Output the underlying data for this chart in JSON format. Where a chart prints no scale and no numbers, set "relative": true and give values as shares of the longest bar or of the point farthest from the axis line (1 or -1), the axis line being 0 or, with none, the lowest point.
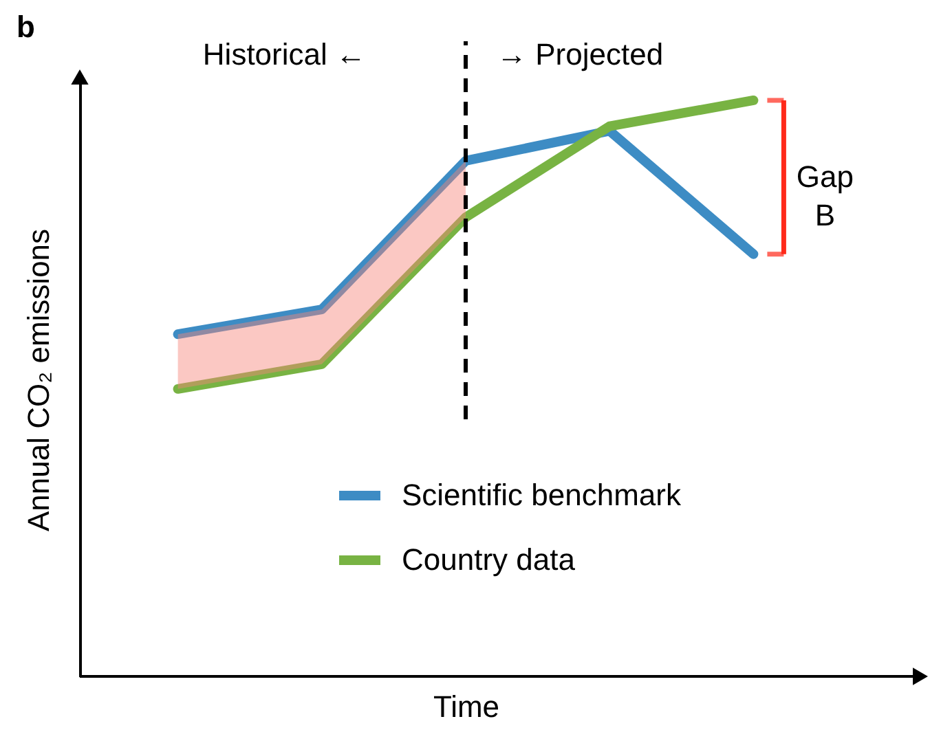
{
  "chart_data": {
    "type": "line",
    "title": "b",
    "xlabel": "Time",
    "ylabel": "Annual CO₂ emissions",
    "relative": true,
    "categories": [
      null,
      null,
      null,
      null,
      null
    ],
    "tick_labels": false,
    "grid": false,
    "legend": "bottom",
    "marker": "none",
    "line_style": "solid",
    "series": [
      {
        "name": "Scientific benchmark",
        "color": "#3d8cc4",
        "values": [
          0.594,
          0.637,
          0.895,
          0.947,
          0.733
        ],
        "lower": [
          0.499,
          0.542,
          0.797,
          null,
          null
        ],
        "upper": [
          0.594,
          0.637,
          0.895,
          null,
          null
        ]
      },
      {
        "name": "Country data",
        "color": "#78b343",
        "values": [
          0.499,
          0.542,
          0.797,
          0.955,
          1.0
        ]
      }
    ],
    "annotations": [
      "Historical ←",
      "→ Projected",
      "Gap B"
    ]
  }
}
